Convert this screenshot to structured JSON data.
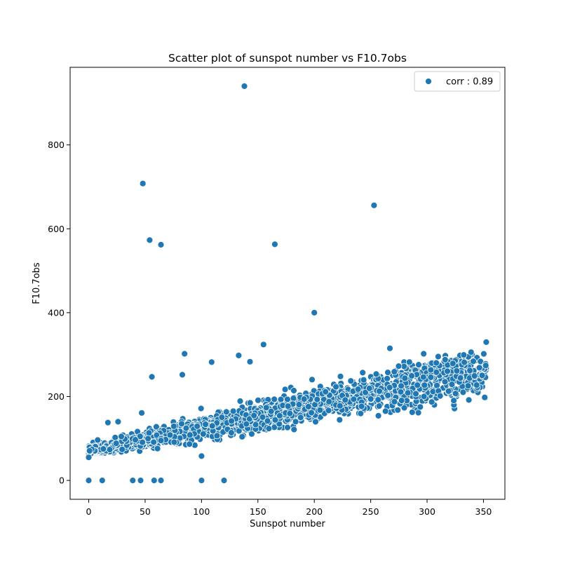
{
  "chart_data": {
    "type": "scatter",
    "title": "Scatter plot of sunspot number vs F10.7obs",
    "xlabel": "Sunspot number",
    "ylabel": "F10.7obs",
    "xlim": [
      -16.5,
      369
    ],
    "ylim": [
      -45,
      985
    ],
    "xticks": [
      0,
      50,
      100,
      150,
      200,
      250,
      300,
      350
    ],
    "yticks": [
      0,
      200,
      400,
      600,
      800
    ],
    "grid": false,
    "legend_position": "top-right",
    "marker_color": "#1f77b4",
    "marker_edge_color": "#ffffff",
    "series": [
      {
        "name": "corr : 0.89",
        "trend": {
          "slope": 0.55,
          "intercept": 70,
          "x_min": 0,
          "x_max": 353
        },
        "outliers": [
          {
            "x": 138,
            "y": 940
          },
          {
            "x": 48,
            "y": 708
          },
          {
            "x": 253,
            "y": 656
          },
          {
            "x": 54,
            "y": 573
          },
          {
            "x": 64,
            "y": 562
          },
          {
            "x": 165,
            "y": 563
          },
          {
            "x": 200,
            "y": 400
          },
          {
            "x": 155,
            "y": 324
          },
          {
            "x": 85,
            "y": 302
          },
          {
            "x": 133,
            "y": 298
          },
          {
            "x": 143,
            "y": 283
          },
          {
            "x": 109,
            "y": 282
          },
          {
            "x": 267,
            "y": 315
          },
          {
            "x": 83,
            "y": 252
          },
          {
            "x": 56,
            "y": 247
          },
          {
            "x": 297,
            "y": 302
          },
          {
            "x": 316,
            "y": 288
          },
          {
            "x": 341,
            "y": 284
          },
          {
            "x": 352,
            "y": 274
          },
          {
            "x": 322,
            "y": 229
          },
          {
            "x": 338,
            "y": 262
          },
          {
            "x": 100,
            "y": 58
          },
          {
            "x": 0,
            "y": 0
          },
          {
            "x": 12,
            "y": 0
          },
          {
            "x": 39,
            "y": 0
          },
          {
            "x": 46,
            "y": 0
          },
          {
            "x": 58,
            "y": 0
          },
          {
            "x": 64,
            "y": 0
          },
          {
            "x": 100,
            "y": 0
          },
          {
            "x": 120,
            "y": 0
          },
          {
            "x": 0,
            "y": 55
          },
          {
            "x": 47,
            "y": 161
          },
          {
            "x": 17,
            "y": 138
          },
          {
            "x": 26,
            "y": 140
          }
        ]
      }
    ]
  }
}
